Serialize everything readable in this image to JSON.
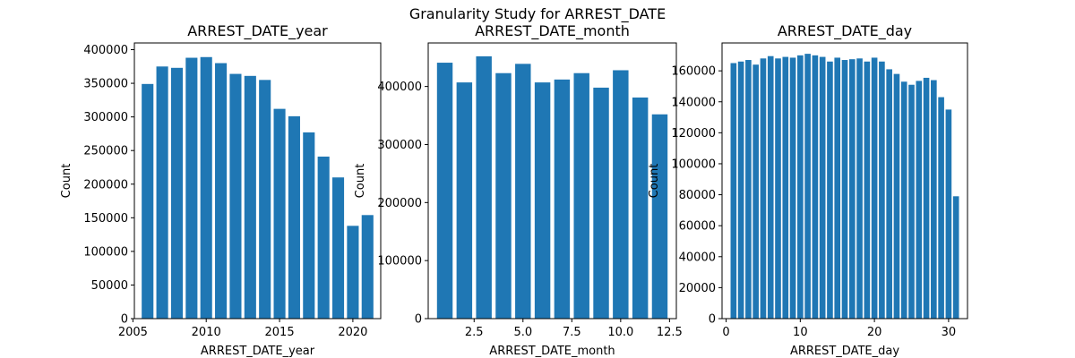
{
  "figure": {
    "suptitle": "Granularity Study for ARREST_DATE",
    "bar_color": "#1f77b4"
  },
  "chart_data": [
    {
      "type": "bar",
      "title": "ARREST_DATE_year",
      "xlabel": "ARREST_DATE_year",
      "ylabel": "Count",
      "x": [
        2006,
        2007,
        2008,
        2009,
        2010,
        2011,
        2012,
        2013,
        2014,
        2015,
        2016,
        2017,
        2018,
        2019,
        2020,
        2021
      ],
      "values": [
        349000,
        375000,
        373000,
        388000,
        389000,
        380000,
        364000,
        361000,
        355000,
        312000,
        301000,
        277000,
        241000,
        210000,
        138000,
        154000
      ],
      "xlim": [
        2005.1,
        2021.9
      ],
      "ylim": [
        0,
        410000
      ],
      "xticks": [
        2005,
        2010,
        2015,
        2020
      ],
      "xtick_labels": [
        "2005",
        "2010",
        "2015",
        "2020"
      ],
      "yticks": [
        0,
        50000,
        100000,
        150000,
        200000,
        250000,
        300000,
        350000,
        400000
      ],
      "ytick_labels": [
        "0",
        "50000",
        "100000",
        "150000",
        "200000",
        "250000",
        "300000",
        "350000",
        "400000"
      ]
    },
    {
      "type": "bar",
      "title": "ARREST_DATE_month",
      "xlabel": "ARREST_DATE_month",
      "ylabel": "Count",
      "x": [
        1,
        2,
        3,
        4,
        5,
        6,
        7,
        8,
        9,
        10,
        11,
        12
      ],
      "values": [
        441000,
        407000,
        452000,
        423000,
        439000,
        407000,
        412000,
        423000,
        398000,
        428000,
        381000,
        352000
      ],
      "xlim": [
        0.15,
        12.85
      ],
      "ylim": [
        0,
        475000
      ],
      "xticks": [
        2.5,
        5.0,
        7.5,
        10.0,
        12.5
      ],
      "xtick_labels": [
        "2.5",
        "5.0",
        "7.5",
        "10.0",
        "12.5"
      ],
      "yticks": [
        0,
        100000,
        200000,
        300000,
        400000
      ],
      "ytick_labels": [
        "0",
        "100000",
        "200000",
        "300000",
        "400000"
      ]
    },
    {
      "type": "bar",
      "title": "ARREST_DATE_day",
      "xlabel": "ARREST_DATE_day",
      "ylabel": "Count",
      "x": [
        1,
        2,
        3,
        4,
        5,
        6,
        7,
        8,
        9,
        10,
        11,
        12,
        13,
        14,
        15,
        16,
        17,
        18,
        19,
        20,
        21,
        22,
        23,
        24,
        25,
        26,
        27,
        28,
        29,
        30,
        31
      ],
      "values": [
        165000,
        166000,
        167000,
        164000,
        168000,
        169500,
        168000,
        169000,
        168500,
        170000,
        171000,
        170000,
        169000,
        166000,
        168500,
        167000,
        167500,
        168000,
        166000,
        168500,
        166000,
        161000,
        158000,
        153000,
        151000,
        153500,
        155500,
        154000,
        143000,
        135000,
        79000
      ],
      "xlim": [
        -0.55,
        32.55
      ],
      "ylim": [
        0,
        178000
      ],
      "xticks": [
        0,
        10,
        20,
        30
      ],
      "xtick_labels": [
        "0",
        "10",
        "20",
        "30"
      ],
      "yticks": [
        0,
        20000,
        40000,
        60000,
        80000,
        100000,
        120000,
        140000,
        160000
      ],
      "ytick_labels": [
        "0",
        "20000",
        "40000",
        "60000",
        "80000",
        "100000",
        "120000",
        "140000",
        "160000"
      ]
    }
  ]
}
